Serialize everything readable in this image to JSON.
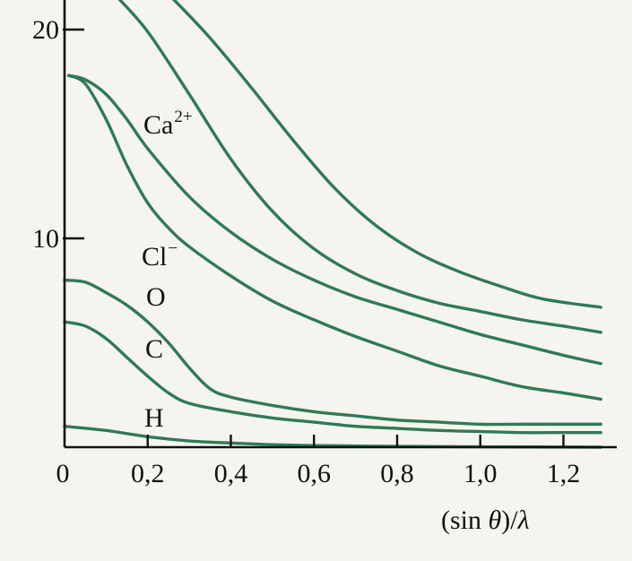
{
  "chart_data": {
    "type": "line",
    "title": "",
    "xlabel": "(sin θ)/λ",
    "ylabel": "",
    "xlim": [
      0,
      1.3
    ],
    "ylim": [
      0,
      21.5
    ],
    "x_ticks": [
      {
        "value": 0,
        "label": "0"
      },
      {
        "value": 0.2,
        "label": "0,2"
      },
      {
        "value": 0.4,
        "label": "0,4"
      },
      {
        "value": 0.6,
        "label": "0,6"
      },
      {
        "value": 0.8,
        "label": "0,8"
      },
      {
        "value": 1.0,
        "label": "1,0"
      },
      {
        "value": 1.2,
        "label": "1,2"
      }
    ],
    "y_ticks": [
      {
        "value": 10,
        "label": "10"
      },
      {
        "value": 20,
        "label": "20"
      }
    ],
    "grid": false,
    "series": [
      {
        "id": "s1",
        "name": "",
        "x": [
          0.25,
          0.35,
          0.45,
          0.55,
          0.65,
          0.75,
          0.85,
          0.95,
          1.05,
          1.15,
          1.29
        ],
        "y": [
          21.7,
          19.6,
          17.2,
          14.7,
          12.4,
          10.6,
          9.3,
          8.4,
          7.7,
          7.1,
          6.7
        ]
      },
      {
        "id": "s2",
        "name": "",
        "x": [
          0.12,
          0.2,
          0.3,
          0.4,
          0.5,
          0.6,
          0.7,
          0.8,
          0.9,
          1.0,
          1.1,
          1.2,
          1.29
        ],
        "y": [
          21.7,
          19.9,
          16.9,
          13.8,
          11.3,
          9.5,
          8.3,
          7.5,
          6.9,
          6.5,
          6.1,
          5.8,
          5.5
        ]
      },
      {
        "id": "s3",
        "name": "Ca",
        "label": "Ca",
        "label_sup": "2+",
        "x": [
          0.01,
          0.05,
          0.1,
          0.15,
          0.2,
          0.3,
          0.4,
          0.5,
          0.6,
          0.7,
          0.8,
          0.9,
          1.0,
          1.1,
          1.2,
          1.29
        ],
        "y": [
          17.8,
          17.6,
          16.9,
          15.7,
          14.3,
          12.0,
          10.3,
          9.0,
          8.0,
          7.2,
          6.6,
          6.0,
          5.4,
          4.9,
          4.4,
          4.0
        ]
      },
      {
        "id": "s4",
        "name": "Cl",
        "label": "Cl",
        "label_sup": "−",
        "x": [
          0.01,
          0.05,
          0.1,
          0.15,
          0.2,
          0.25,
          0.3,
          0.4,
          0.5,
          0.6,
          0.7,
          0.8,
          0.9,
          1.0,
          1.1,
          1.2,
          1.29
        ],
        "y": [
          17.8,
          17.4,
          15.7,
          13.5,
          11.7,
          10.5,
          9.6,
          8.2,
          7.0,
          6.1,
          5.3,
          4.6,
          3.9,
          3.4,
          2.9,
          2.6,
          2.3
        ]
      },
      {
        "id": "s5",
        "name": "O",
        "label": "O",
        "label_sup": "",
        "x": [
          0.0,
          0.05,
          0.1,
          0.15,
          0.2,
          0.25,
          0.3,
          0.35,
          0.4,
          0.5,
          0.6,
          0.7,
          0.8,
          0.9,
          1.0,
          1.1,
          1.2,
          1.29
        ],
        "y": [
          8.0,
          7.9,
          7.4,
          6.8,
          6.0,
          5.0,
          3.8,
          2.8,
          2.4,
          2.0,
          1.7,
          1.5,
          1.3,
          1.2,
          1.1,
          1.1,
          1.1,
          1.1
        ]
      },
      {
        "id": "s6",
        "name": "C",
        "label": "C",
        "label_sup": "",
        "x": [
          0.0,
          0.05,
          0.1,
          0.15,
          0.2,
          0.25,
          0.3,
          0.4,
          0.5,
          0.6,
          0.7,
          0.8,
          0.9,
          1.0,
          1.1,
          1.2,
          1.29
        ],
        "y": [
          6.0,
          5.8,
          5.2,
          4.3,
          3.4,
          2.6,
          2.1,
          1.7,
          1.4,
          1.2,
          1.0,
          0.9,
          0.8,
          0.75,
          0.7,
          0.7,
          0.7
        ]
      },
      {
        "id": "s7",
        "name": "H",
        "label": "H",
        "label_sup": "",
        "x": [
          0.0,
          0.1,
          0.2,
          0.3,
          0.4,
          0.5,
          0.6,
          0.8,
          1.0,
          1.29
        ],
        "y": [
          1.0,
          0.8,
          0.5,
          0.3,
          0.2,
          0.12,
          0.08,
          0.04,
          0.02,
          0.0
        ]
      }
    ],
    "line_color": "#2f7a57",
    "axis_color": "#111111"
  }
}
